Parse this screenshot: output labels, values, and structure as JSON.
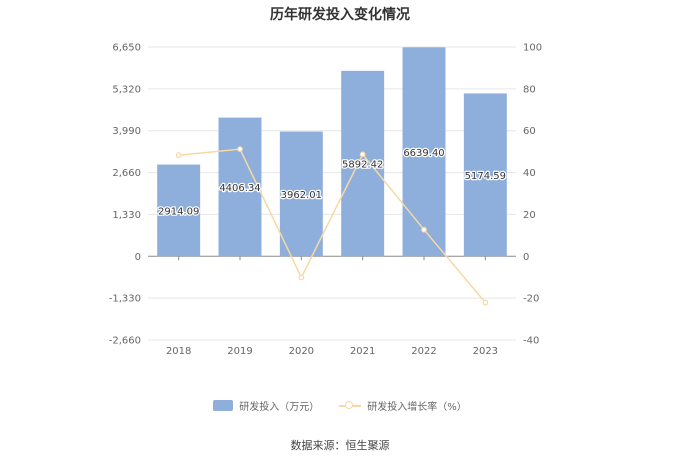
{
  "chart_data": {
    "type": "bar",
    "title": "历年研发投入变化情况",
    "categories": [
      "2018",
      "2019",
      "2020",
      "2021",
      "2022",
      "2023"
    ],
    "series": [
      {
        "name": "研发投入（万元）",
        "type": "bar",
        "axis": "left",
        "color": "#8eaedc",
        "values": [
          2914.09,
          4406.34,
          3962.01,
          5892.42,
          6639.4,
          5174.59
        ],
        "labels": [
          "2914.09",
          "4406.34",
          "3962.01",
          "5892.42",
          "6639.40",
          "5174.59"
        ]
      },
      {
        "name": "研发投入增长率（%）",
        "type": "line",
        "axis": "right",
        "color": "#f7d8a4",
        "values": [
          48.3,
          51.2,
          -10.1,
          48.7,
          12.7,
          -22.1
        ]
      }
    ],
    "y_left": {
      "ticks": [
        "6,650",
        "5,320",
        "3,990",
        "2,660",
        "1,330",
        "0",
        "-1,330",
        "-2,660"
      ],
      "tick_values": [
        6650,
        5320,
        3990,
        2660,
        1330,
        0,
        -1330,
        -2660
      ],
      "range": [
        -2660,
        6650
      ]
    },
    "y_right": {
      "ticks": [
        "100",
        "80",
        "60",
        "40",
        "20",
        "0",
        "-20",
        "-40"
      ],
      "tick_values": [
        100,
        80,
        60,
        40,
        20,
        0,
        -20,
        -40
      ],
      "range": [
        -40,
        100
      ]
    },
    "grid": true,
    "legend_position": "bottom"
  },
  "source": "数据来源：恒生聚源"
}
